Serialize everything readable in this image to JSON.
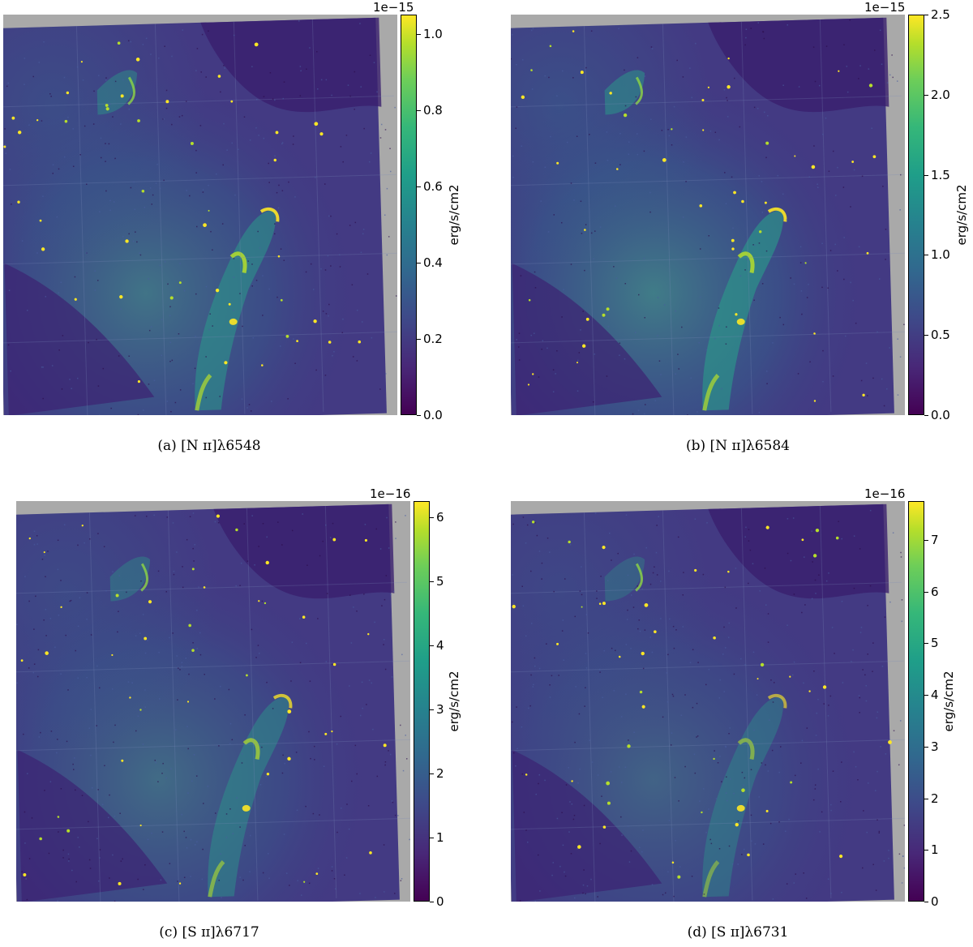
{
  "figure": {
    "panels": [
      {
        "id": "a",
        "caption": "(a)  [N ɪɪ]λ6548",
        "colorbar": {
          "exponent": "1e−15",
          "unit": "erg/s/cm2",
          "ticks": [
            "0.0",
            "0.2",
            "0.4",
            "0.6",
            "0.8",
            "1.0"
          ],
          "tick_values": [
            0.0,
            0.2,
            0.4,
            0.6,
            0.8,
            1.0
          ],
          "vmax": 1.05
        },
        "brightness": 1.0
      },
      {
        "id": "b",
        "caption": "(b)  [N ɪɪ]λ6584",
        "colorbar": {
          "exponent": "1e−15",
          "unit": "erg/s/cm2",
          "ticks": [
            "0.0",
            "0.5",
            "1.0",
            "1.5",
            "2.0",
            "2.5"
          ],
          "tick_values": [
            0.0,
            0.5,
            1.0,
            1.5,
            2.0,
            2.5
          ],
          "vmax": 2.5
        },
        "brightness": 1.15
      },
      {
        "id": "c",
        "caption": "(c)  [S ɪɪ]λ6717",
        "colorbar": {
          "exponent": "1e−16",
          "unit": "erg/s/cm2",
          "ticks": [
            "0",
            "1",
            "2",
            "3",
            "4",
            "5",
            "6"
          ],
          "tick_values": [
            0,
            1,
            2,
            3,
            4,
            5,
            6
          ],
          "vmax": 6.25
        },
        "brightness": 0.85
      },
      {
        "id": "d",
        "caption": "(d)  [S ɪɪ]λ6731",
        "colorbar": {
          "exponent": "1e−16",
          "unit": "erg/s/cm2",
          "ticks": [
            "0",
            "1",
            "2",
            "3",
            "4",
            "5",
            "6",
            "7"
          ],
          "tick_values": [
            0,
            1,
            2,
            3,
            4,
            5,
            6,
            7
          ],
          "vmax": 7.75
        },
        "brightness": 0.7
      }
    ],
    "colormap": "viridis",
    "colors": {
      "no_data": "#a9a9a9",
      "low": "#440154",
      "high": "#fde725"
    }
  }
}
